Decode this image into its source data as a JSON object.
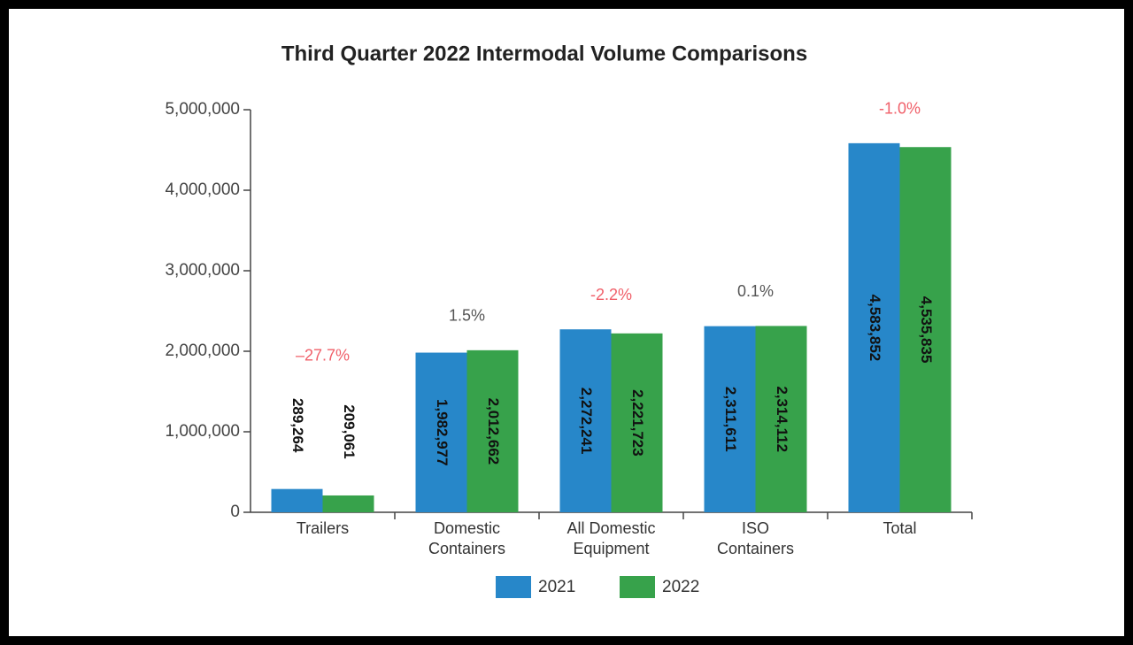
{
  "chart_data": {
    "type": "bar",
    "title": "Third Quarter 2022 Intermodal Volume Comparisons",
    "categories": [
      [
        "Trailers"
      ],
      [
        "Domestic",
        "Containers"
      ],
      [
        "All Domestic",
        "Equipment"
      ],
      [
        "ISO",
        "Containers"
      ],
      [
        "Total"
      ]
    ],
    "series": [
      {
        "name": "2021",
        "color": "#2787c9",
        "values": [
          289264,
          1982977,
          2272241,
          2311611,
          4583852
        ],
        "value_labels": [
          "289,264",
          "1,982,977",
          "2,272,241",
          "2,311,611",
          "4,583,852"
        ]
      },
      {
        "name": "2022",
        "color": "#37a24b",
        "values": [
          209061,
          2012662,
          2221723,
          2314112,
          4535835
        ],
        "value_labels": [
          "209,061",
          "2,012,662",
          "2,221,723",
          "2,314,112",
          "4,535,835"
        ]
      }
    ],
    "annotations": [
      {
        "text": "–27.7%",
        "color": "#f0606a"
      },
      {
        "text": "1.5%",
        "color": "#555555"
      },
      {
        "text": "-2.2%",
        "color": "#f0606a"
      },
      {
        "text": "0.1%",
        "color": "#555555"
      },
      {
        "text": "-1.0%",
        "color": "#f0606a"
      }
    ],
    "ylim": [
      0,
      5000000
    ],
    "yticks": [
      0,
      {
        "value": 1000000,
        "label": "1,000,000"
      },
      {
        "value": 2000000,
        "label": "2,000,000"
      },
      {
        "value": 3000000,
        "label": "3,000,000"
      },
      {
        "value": 4000000,
        "label": "4,000,000"
      },
      {
        "value": 5000000,
        "label": "5,000,000"
      }
    ],
    "legend": "bottom"
  }
}
